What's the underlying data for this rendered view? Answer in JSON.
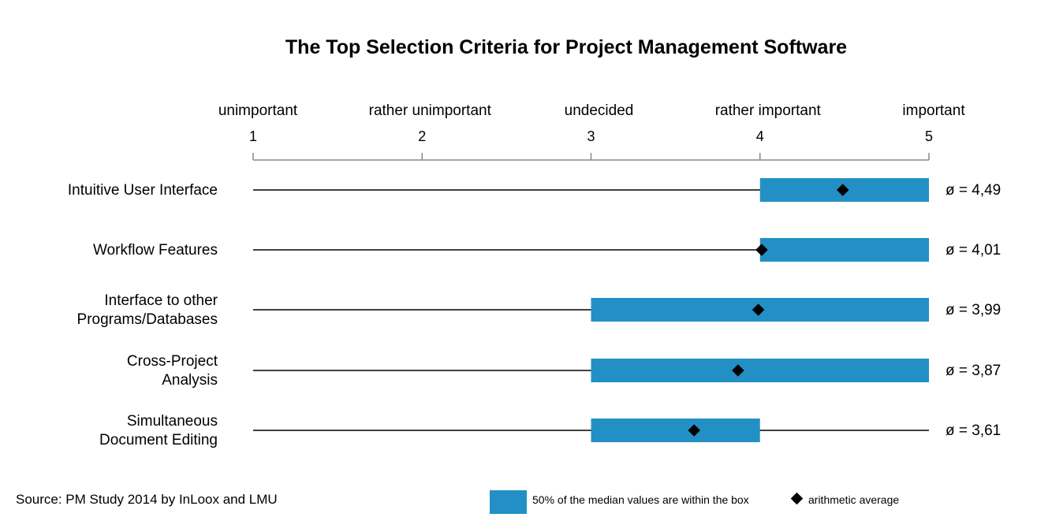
{
  "chart_data": {
    "type": "box",
    "title": "The Top Selection Criteria for Project Management Software",
    "scale": {
      "min": 1,
      "max": 5,
      "ticks": [
        1,
        2,
        3,
        4,
        5
      ],
      "tick_labels": [
        "1",
        "2",
        "3",
        "4",
        "5"
      ],
      "labels": [
        "unimportant",
        "rather unimportant",
        "undecided",
        "rather important",
        "important"
      ]
    },
    "categories": [
      [
        "Intuitive User Interface"
      ],
      [
        "Workflow Features"
      ],
      [
        "Interface to other",
        "Programs/Databases"
      ],
      [
        "Cross-Project",
        "Analysis"
      ],
      [
        "Simultaneous",
        "Document Editing"
      ]
    ],
    "series": [
      {
        "whisker_low": 1,
        "whisker_high": 5,
        "box_low": 4,
        "box_high": 5,
        "mean": 4.49,
        "mean_label": "ø = 4,49"
      },
      {
        "whisker_low": 1,
        "whisker_high": 5,
        "box_low": 4,
        "box_high": 5,
        "mean": 4.01,
        "mean_label": "ø = 4,01"
      },
      {
        "whisker_low": 1,
        "whisker_high": 5,
        "box_low": 3,
        "box_high": 5,
        "mean": 3.99,
        "mean_label": "ø = 3,99"
      },
      {
        "whisker_low": 1,
        "whisker_high": 5,
        "box_low": 3,
        "box_high": 5,
        "mean": 3.87,
        "mean_label": "ø = 3,87"
      },
      {
        "whisker_low": 1,
        "whisker_high": 5,
        "box_low": 3,
        "box_high": 4,
        "mean": 3.61,
        "mean_label": "ø = 3,61"
      }
    ],
    "legend": {
      "box": "50% of the median values are within the box",
      "mean": "arithmetic average"
    },
    "source": "Source: PM Study 2014 by InLoox and LMU"
  },
  "colors": {
    "box": "#2290c5",
    "text": "#000000",
    "axis": "#888888"
  }
}
